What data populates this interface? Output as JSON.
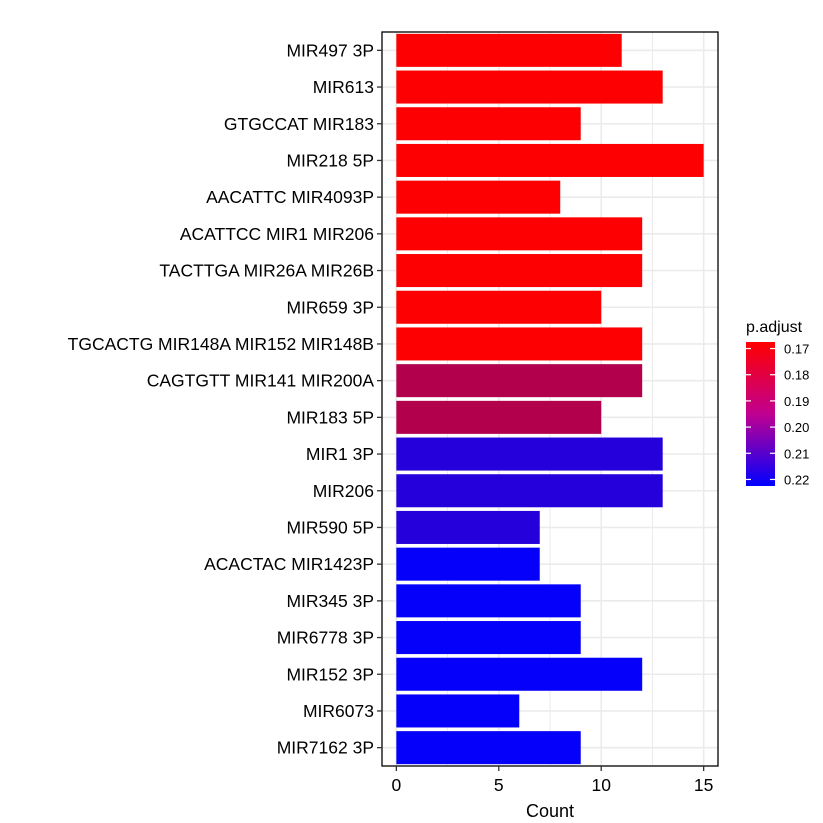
{
  "chart_data": {
    "type": "bar",
    "orientation": "horizontal",
    "categories": [
      "MIR497 3P",
      "MIR613",
      "GTGCCAT MIR183",
      "MIR218 5P",
      "AACATTC MIR4093P",
      "ACATTCC MIR1 MIR206",
      "TACTTGA MIR26A MIR26B",
      "MIR659 3P",
      "TGCACTG MIR148A MIR152 MIR148B",
      "CAGTGTT MIR141 MIR200A",
      "MIR183 5P",
      "MIR1 3P",
      "MIR206",
      "MIR590 5P",
      "ACACTAC MIR1423P",
      "MIR345 3P",
      "MIR6778 3P",
      "MIR152 3P",
      "MIR6073",
      "MIR7162 3P"
    ],
    "values": [
      11,
      13,
      9,
      15,
      8,
      12,
      12,
      10,
      12,
      12,
      10,
      13,
      13,
      7,
      7,
      9,
      9,
      12,
      6,
      9
    ],
    "p_adjust": [
      0.168,
      0.168,
      0.168,
      0.168,
      0.168,
      0.168,
      0.168,
      0.168,
      0.168,
      0.184,
      0.184,
      0.2145,
      0.2145,
      0.2145,
      0.2215,
      0.2215,
      0.2215,
      0.2215,
      0.2215,
      0.2215
    ],
    "xlabel": "Count",
    "ylabel": "",
    "xlim": [
      -0.7,
      15.7
    ],
    "x_ticks": [
      0,
      5,
      10,
      15
    ],
    "x_tick_labels": [
      "0",
      "5",
      "10",
      "15"
    ],
    "grid": true,
    "legend": {
      "title": "p.adjust",
      "placement": "right",
      "ticks": [
        0.17,
        0.18,
        0.19,
        0.2,
        0.21,
        0.22
      ],
      "tick_labels": [
        "0.17",
        "0.18",
        "0.19",
        "0.20",
        "0.21",
        "0.22"
      ],
      "range": [
        0.1675,
        0.2225
      ],
      "color_low": "#ff0000",
      "color_high": "#0000ff"
    }
  }
}
